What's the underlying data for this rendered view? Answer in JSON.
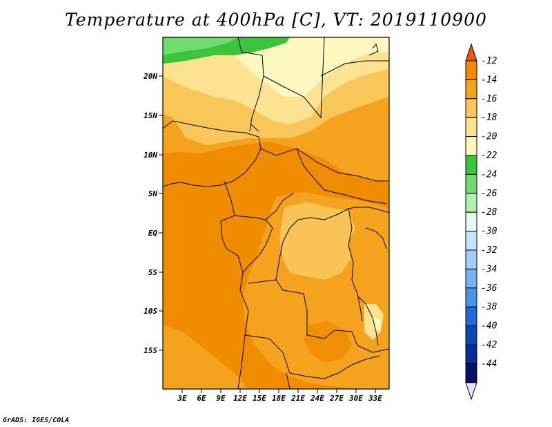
{
  "title": "Temperature at 400hPa [C], VT: 2019110900",
  "credit": "GrADS: IGES/COLA",
  "map": {
    "lat_labels": [
      "20N",
      "15N",
      "10N",
      "5N",
      "EQ",
      "5S",
      "10S",
      "15S"
    ],
    "lon_labels": [
      "3E",
      "6E",
      "9E",
      "12E",
      "15E",
      "18E",
      "21E",
      "24E",
      "27E",
      "30E",
      "33E"
    ]
  },
  "colorbar": {
    "labels": [
      "-12",
      "-14",
      "-16",
      "-18",
      "-20",
      "-22",
      "-24",
      "-26",
      "-28",
      "-30",
      "-32",
      "-34",
      "-36",
      "-38",
      "-40",
      "-42",
      "-44"
    ],
    "colors": [
      "#ea5a00",
      "#f08c00",
      "#f5a21e",
      "#f9c65a",
      "#fbe392",
      "#fdf7c0",
      "#3cc43c",
      "#70dc70",
      "#b0f0b0",
      "#e4fcf0",
      "#c8e2fc",
      "#a2cdf8",
      "#78b2f2",
      "#4a94ea",
      "#2268d6",
      "#0a48b8",
      "#0a2e98",
      "#06106a",
      "#e2e2f6"
    ]
  }
}
